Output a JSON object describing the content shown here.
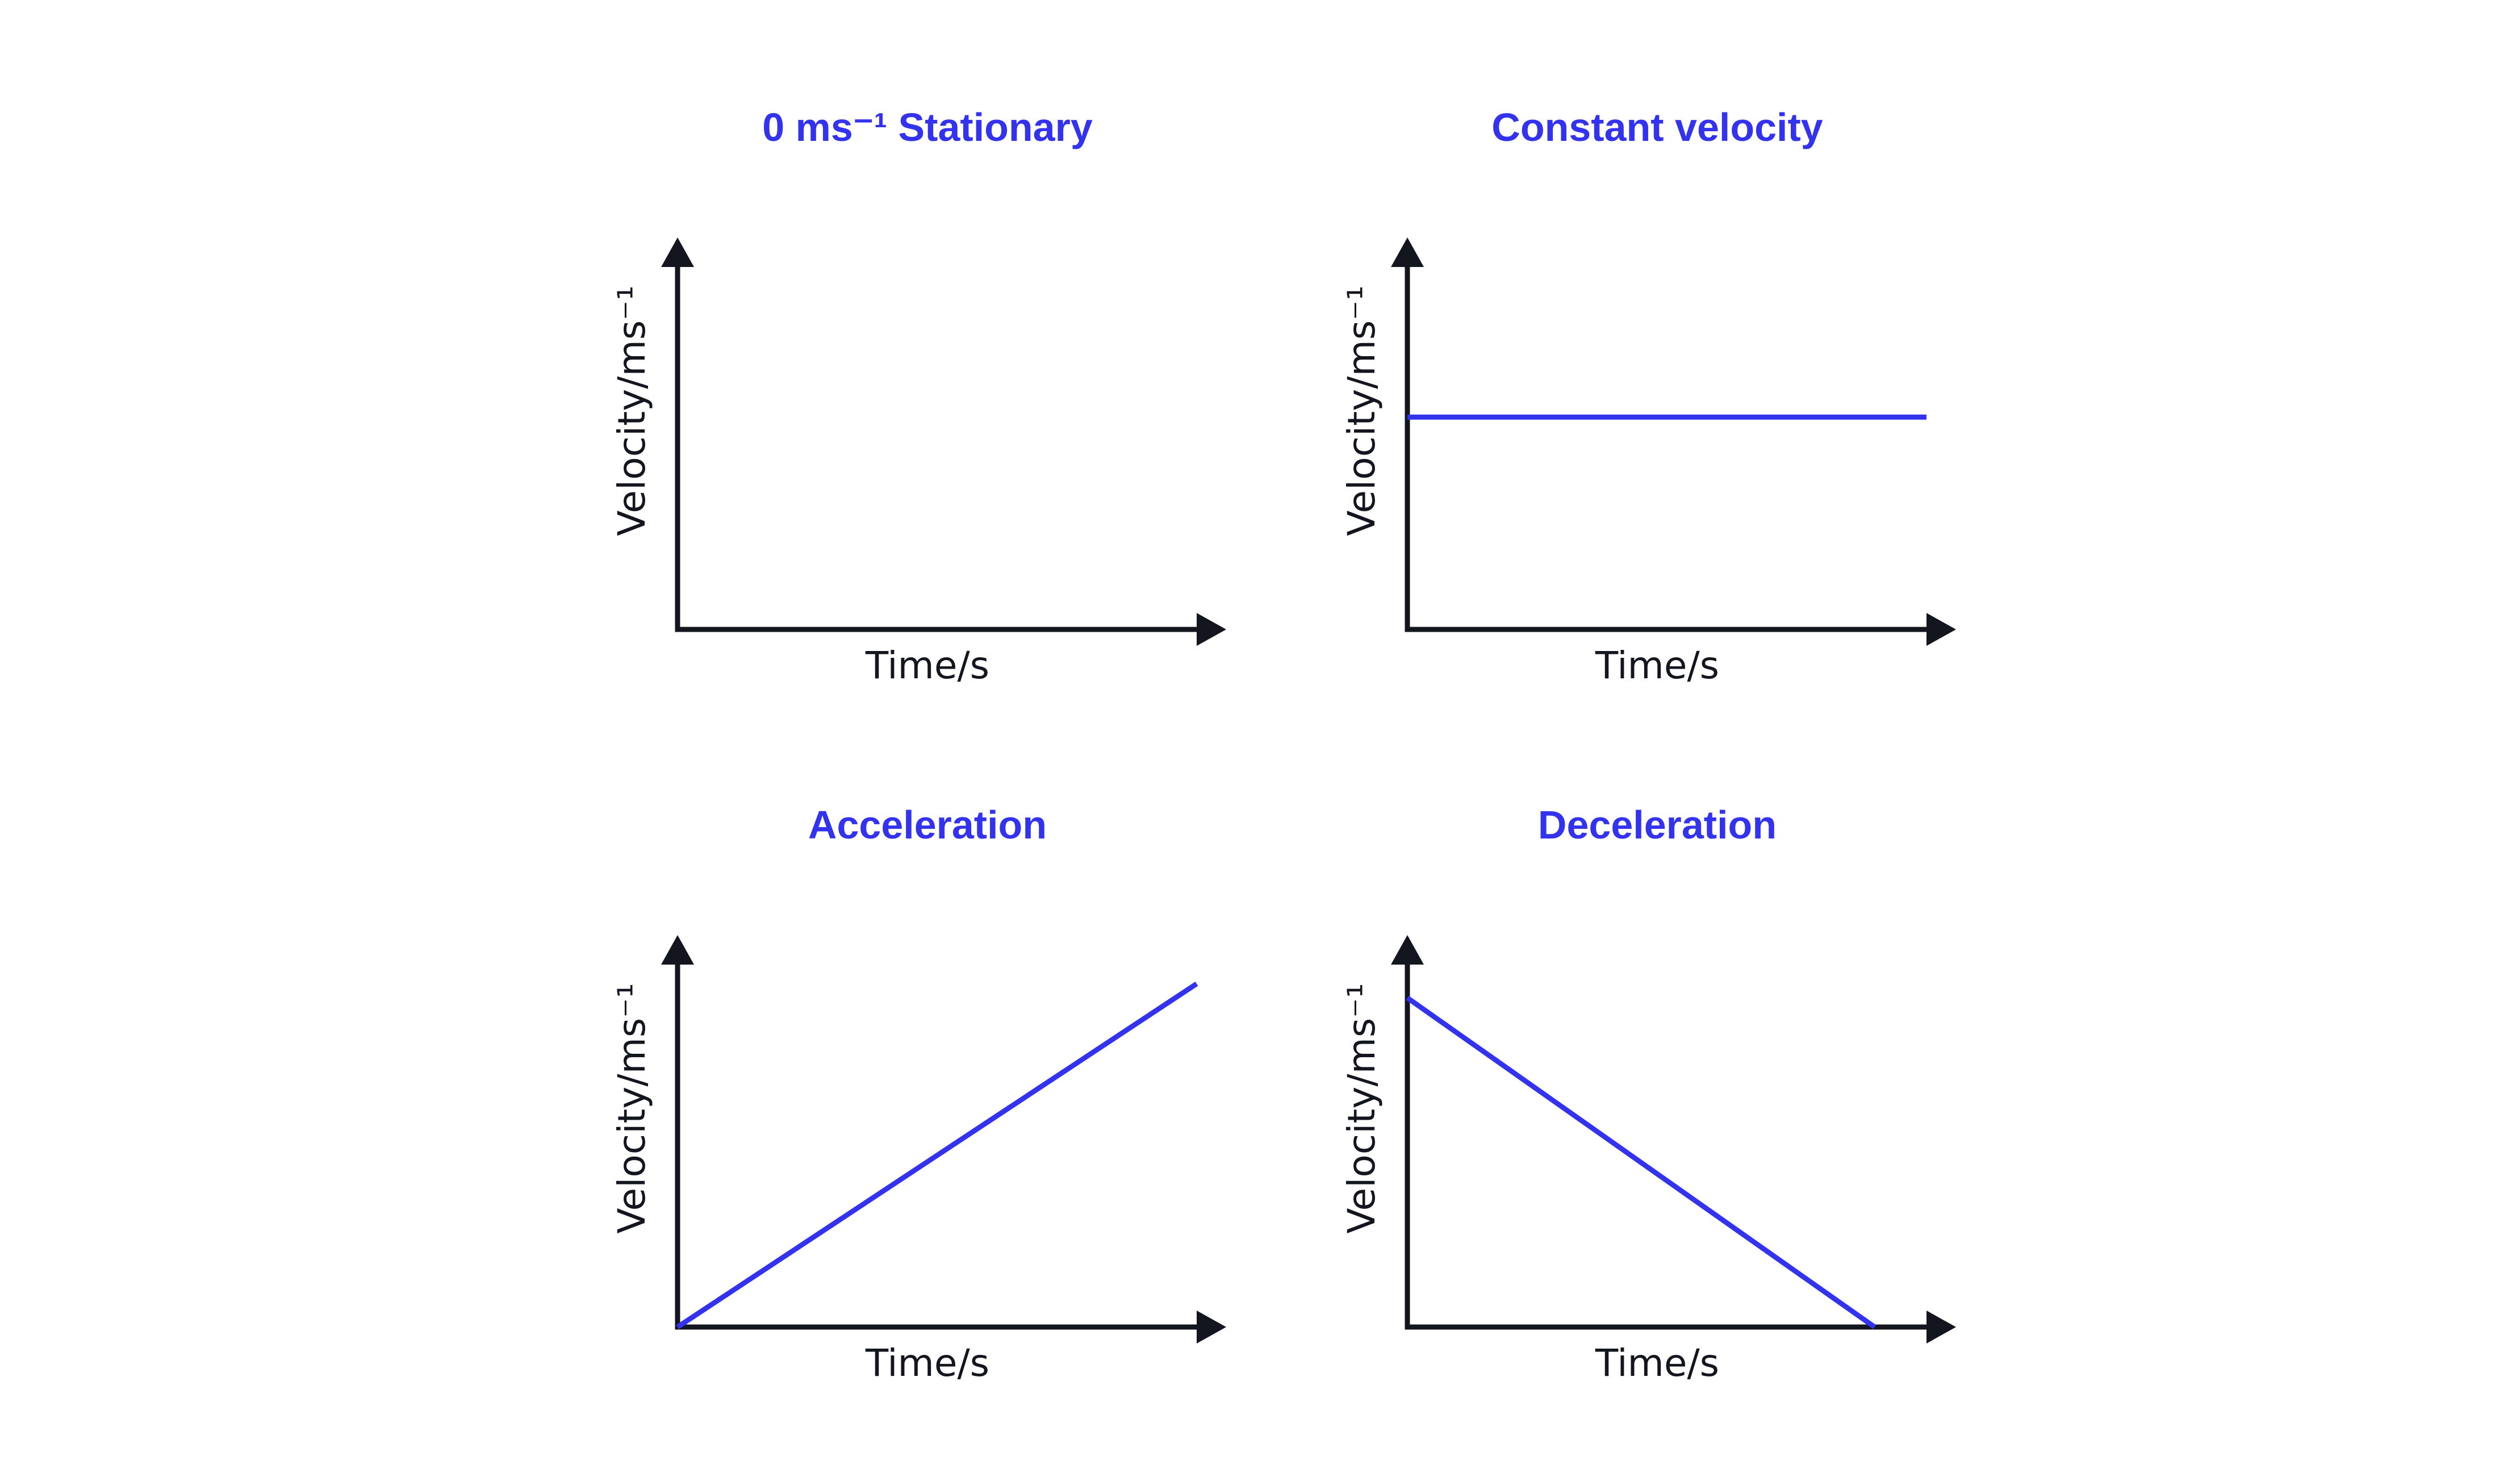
{
  "colors": {
    "accent": "#3333ee",
    "axis": "#14161f",
    "background": "#ffffff"
  },
  "chart_data": [
    {
      "type": "line",
      "title": "0 ms⁻¹ Stationary",
      "xlabel": "Time/s",
      "ylabel": "Velocity/ms⁻¹",
      "xlim": [
        0,
        1
      ],
      "ylim": [
        0,
        1
      ],
      "grid": false,
      "series": []
    },
    {
      "type": "line",
      "title": "Constant velocity",
      "xlabel": "Time/s",
      "ylabel": "Velocity/ms⁻¹",
      "xlim": [
        0,
        1
      ],
      "ylim": [
        0,
        1
      ],
      "grid": false,
      "series": [
        {
          "x": [
            0,
            1
          ],
          "y": [
            0.6,
            0.6
          ]
        }
      ]
    },
    {
      "type": "line",
      "title": "Acceleration",
      "xlabel": "Time/s",
      "ylabel": "Velocity/ms⁻¹",
      "xlim": [
        0,
        1
      ],
      "ylim": [
        0,
        1
      ],
      "grid": false,
      "series": [
        {
          "x": [
            0,
            1
          ],
          "y": [
            0,
            0.97
          ]
        }
      ]
    },
    {
      "type": "line",
      "title": "Deceleration",
      "xlabel": "Time/s",
      "ylabel": "Velocity/ms⁻¹",
      "xlim": [
        0,
        1
      ],
      "ylim": [
        0,
        1
      ],
      "grid": false,
      "series": [
        {
          "x": [
            0,
            0.9
          ],
          "y": [
            0.93,
            0
          ]
        }
      ]
    }
  ]
}
